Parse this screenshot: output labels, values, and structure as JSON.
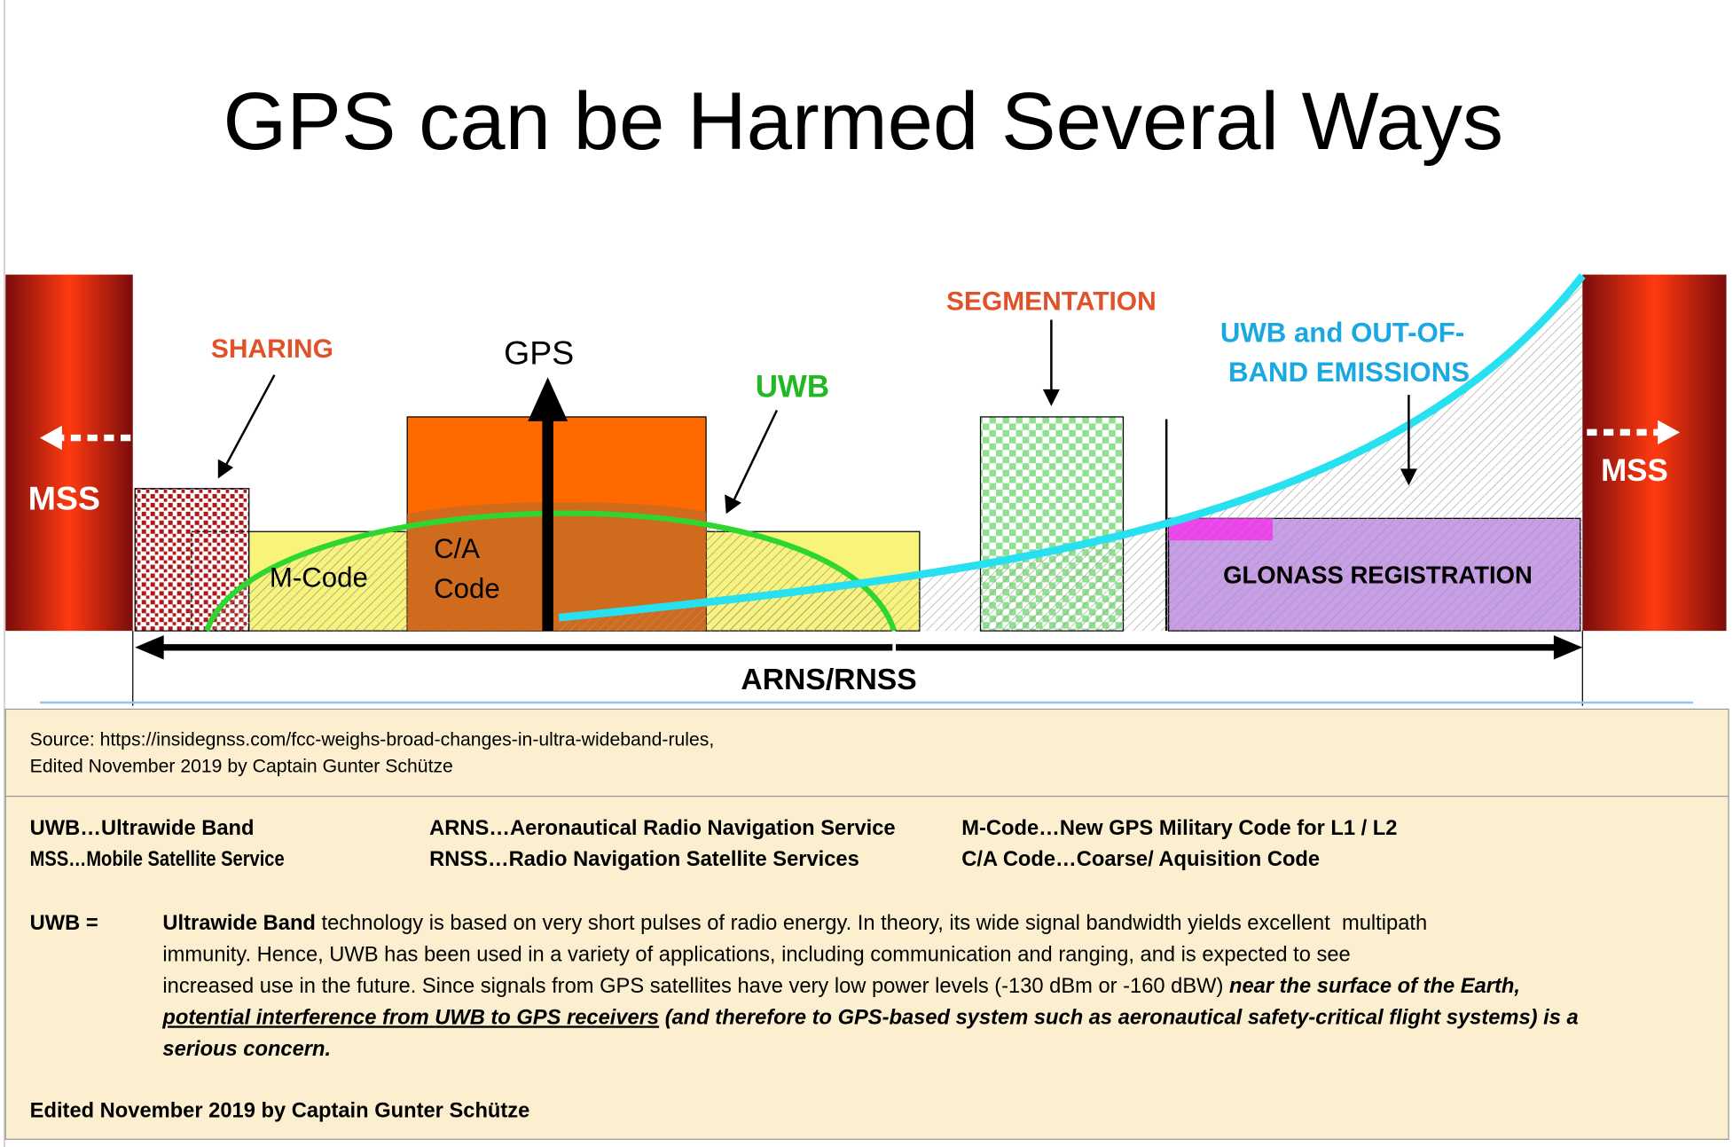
{
  "title": "GPS can be Harmed Several Ways",
  "diagram": {
    "mss_left": "MSS",
    "mss_right": "MSS",
    "sharing": "SHARING",
    "gps": "GPS",
    "uwb": "UWB",
    "segmentation": "SEGMENTATION",
    "uwb_oob": [
      "UWB and OUT-OF-",
      "BAND EMISSIONS"
    ],
    "m_code": "M-Code",
    "ca_code": [
      "C/A",
      "Code"
    ],
    "glonass": "GLONASS REGISTRATION",
    "arns_rnss": "ARNS/RNSS"
  },
  "source": [
    "Source: https://insidegnss.com/fcc-weighs-broad-changes-in-ultra-wideband-rules,",
    "Edited November 2019 by Captain Gunter Schütze"
  ],
  "glossary": [
    [
      "UWB…Ultrawide Band",
      "ARNS…Aeronautical Radio Navigation Service",
      "M-Code…New GPS Military Code for L1 / L2"
    ],
    [
      "MSS…Mobile Satellite Service",
      "RNSS…Radio Navigation Satellite Services",
      "C/A Code…Coarse/ Aquisition Code"
    ]
  ],
  "definition": {
    "term": "UWB =",
    "lines": [
      [
        {
          "text": "Ultrawide Band",
          "bold": true
        },
        {
          "text": " technology is based on very short pulses of radio energy. In theory, its wide signal bandwidth yields excellent  multipath"
        }
      ],
      [
        {
          "text": "immunity. Hence, UWB has been used in a variety of applications, including communication and ranging, and is expected to see"
        }
      ],
      [
        {
          "text": "increased use in the future. Since signals from GPS satellites have very low power levels (-130 dBm or -160 dBW) "
        },
        {
          "text": "near the surface of the Earth,",
          "bold": true,
          "italic": true
        }
      ],
      [
        {
          "text": "potential interference from UWB to GPS receivers",
          "bold": true,
          "italic": true,
          "underline": true
        },
        {
          "text": " (and therefore to GPS-based system such as aeronautical safety-critical flight systems) is a",
          "bold": true,
          "italic": true
        }
      ],
      [
        {
          "text": "serious concern.",
          "bold": true,
          "italic": true
        }
      ]
    ]
  },
  "footer": "Edited November 2019 by Captain Gunter Schütze"
}
